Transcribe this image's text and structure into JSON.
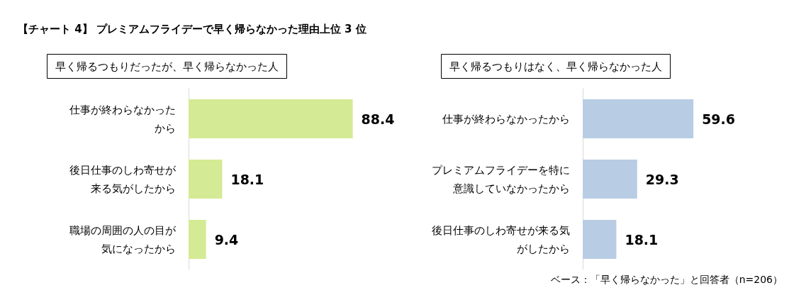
{
  "chart_data": [
    {
      "type": "bar",
      "orientation": "horizontal",
      "title": "【チャート 4】 プレミアムフライデーで早く帰らなかった理由上位 3 位",
      "subtitle": "早く帰るつもりだったが、早く帰らなかった人",
      "categories": [
        "仕事が終わらなかったから",
        "後日仕事のしわ寄せが来る気がしたから",
        "職場の周囲の人の目が気になったから"
      ],
      "values": [
        88.4,
        18.1,
        9.4
      ],
      "color": "#d4ea94",
      "data_labels": true,
      "tick_labels": "y",
      "grid": false
    },
    {
      "type": "bar",
      "orientation": "horizontal",
      "subtitle": "早く帰るつもりはなく、早く帰らなかった人",
      "categories": [
        "仕事が終わらなかったから",
        "プレミアムフライデーを特に意識していなかったから",
        "後日仕事のしわ寄せが来る気がしたから"
      ],
      "values": [
        59.6,
        29.3,
        18.1
      ],
      "color": "#b8cce4",
      "data_labels": true,
      "tick_labels": "y",
      "grid": false,
      "annotations": [
        "ベース：「早く帰らなかった」と回答者（n=206）"
      ]
    }
  ]
}
